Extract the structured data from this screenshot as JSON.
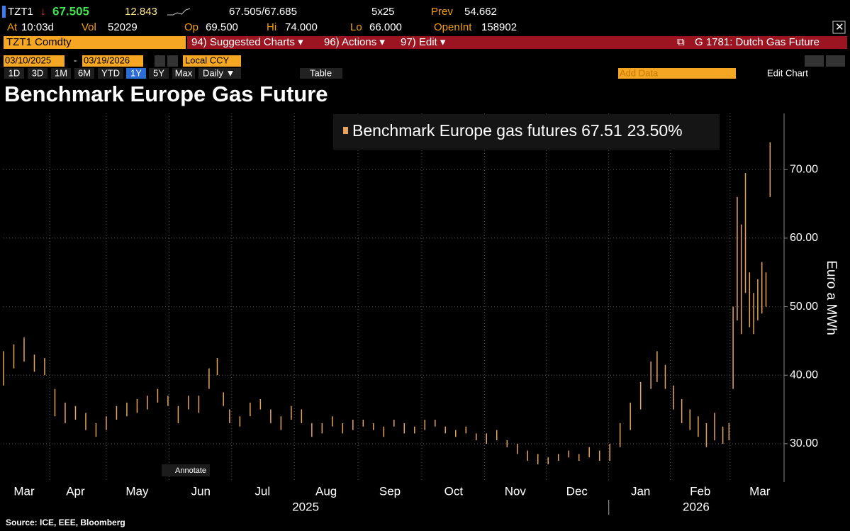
{
  "header": {
    "ticker": "TZT1",
    "arrow": "↓",
    "last": "67.505",
    "change": "12.843",
    "bid_ask": "67.505/67.685",
    "size": "5x25",
    "prev_label": "Prev",
    "prev": "54.662",
    "row2": [
      [
        "At",
        "10:03d"
      ],
      [
        "Vol",
        "52029"
      ],
      [
        "Op",
        "69.500"
      ],
      [
        "Hi",
        "74.000"
      ],
      [
        "Lo",
        "66.000"
      ],
      [
        "OpenInt",
        "158902"
      ]
    ]
  },
  "toolbar": {
    "security": "TZT1 Comdty",
    "menus": [
      "94) Suggested Charts ▾",
      "96) Actions ▾",
      "97) Edit ▾"
    ],
    "function": "G 1781: Dutch Gas Future",
    "start_date": "03/10/2025",
    "end_date": "03/19/2026",
    "currency": "Local CCY",
    "periods": [
      "1D",
      "3D",
      "1M",
      "6M",
      "YTD",
      "1Y",
      "5Y",
      "Max"
    ],
    "frequency": "Daily ▼",
    "table": "Table",
    "add_data": "Add Data",
    "edit_chart": "Edit Chart",
    "annotate": "Annotate"
  },
  "chart_data": {
    "type": "hilo",
    "title": "Benchmark Europe Gas Future",
    "y_label": "Euro a MWh",
    "x": [
      0,
      5,
      10,
      15,
      20,
      25,
      30,
      35,
      40,
      45,
      50,
      55,
      60,
      65,
      70,
      75,
      80,
      85,
      90,
      95,
      100,
      104,
      107,
      110,
      115,
      120,
      125,
      130,
      135,
      140,
      145,
      150,
      155,
      160,
      165,
      170,
      175,
      180,
      185,
      190,
      195,
      200,
      205,
      210,
      215,
      220,
      225,
      230,
      235,
      240,
      245,
      250,
      255,
      260,
      265,
      270,
      275,
      280,
      285,
      290,
      295,
      300,
      305,
      310,
      315,
      318,
      322,
      326,
      330,
      334,
      338,
      342,
      346,
      350,
      353,
      355,
      357,
      359,
      361,
      363,
      365,
      367,
      369,
      371,
      373
    ],
    "series": [
      {
        "name": "Benchmark Europe gas futures",
        "legend_values": [
          "67.51",
          "23.50%"
        ],
        "color": "#e9a458",
        "low": [
          38.5,
          41,
          42,
          40.5,
          40,
          34,
          33,
          33.5,
          32,
          31,
          32,
          33.5,
          34,
          34.5,
          35,
          36,
          35.5,
          33,
          35,
          34.5,
          38,
          40,
          35.5,
          33,
          32.5,
          34,
          35,
          33,
          32,
          33.5,
          33,
          31,
          31.5,
          32.5,
          31.5,
          32,
          32.5,
          32,
          31,
          32.5,
          31.5,
          31.5,
          32,
          32.5,
          31.5,
          31,
          31.5,
          30.5,
          30,
          30.5,
          29.5,
          28.5,
          27.5,
          27,
          27,
          27.5,
          28,
          27.5,
          28,
          27.5,
          27.5,
          29.5,
          32,
          35,
          38,
          39,
          38,
          35,
          33,
          32,
          31,
          29.5,
          30.5,
          30,
          30.5,
          38,
          48,
          46,
          52,
          47,
          46,
          48,
          49,
          50,
          66
        ],
        "high": [
          43.5,
          44.5,
          45.5,
          43,
          42.5,
          38,
          36,
          35.5,
          34.5,
          33,
          34,
          35.5,
          36,
          36.5,
          37,
          38,
          37,
          35.5,
          37,
          37,
          41,
          42.5,
          37.5,
          35,
          34,
          36,
          36.5,
          35,
          34,
          35.5,
          35,
          33,
          33,
          34,
          33,
          33.5,
          33.5,
          33,
          32.5,
          33.5,
          33,
          32.5,
          33.5,
          33.5,
          32.5,
          32,
          32.5,
          31.5,
          31.5,
          32,
          30.5,
          30,
          29,
          28.5,
          28,
          28.5,
          29,
          28.5,
          29.5,
          29,
          30,
          33,
          36,
          39,
          42,
          43.5,
          41.5,
          38.5,
          36.5,
          35,
          34,
          33,
          34.5,
          32.5,
          33,
          50,
          66,
          62,
          69.5,
          55,
          52,
          54,
          56.5,
          55,
          74
        ]
      }
    ],
    "xlim": [
      0,
      376
    ],
    "xticks": [
      {
        "value": 10,
        "label": "Mar"
      },
      {
        "value": 35,
        "label": "Apr"
      },
      {
        "value": 65,
        "label": "May"
      },
      {
        "value": 96,
        "label": "Jun"
      },
      {
        "value": 126,
        "label": "Jul"
      },
      {
        "value": 157,
        "label": "Aug"
      },
      {
        "value": 188,
        "label": "Sep"
      },
      {
        "value": 219,
        "label": "Oct"
      },
      {
        "value": 249,
        "label": "Nov"
      },
      {
        "value": 279,
        "label": "Dec"
      },
      {
        "value": 310,
        "label": "Jan"
      },
      {
        "value": 339,
        "label": "Feb"
      },
      {
        "value": 368,
        "label": "Mar"
      }
    ],
    "x2ticks": [
      {
        "value": 147,
        "label": "2025"
      },
      {
        "value": 337,
        "label": "2026"
      }
    ],
    "ylim": [
      24.4,
      78.2
    ],
    "yticks": [
      {
        "value": 30,
        "label": "30.00"
      },
      {
        "value": 40,
        "label": "40.00"
      },
      {
        "value": 50,
        "label": "50.00"
      },
      {
        "value": 60,
        "label": "60.00"
      },
      {
        "value": 70,
        "label": "70.00"
      }
    ],
    "grid": true
  },
  "footer": "Source: ICE, EEE, Bloomberg"
}
